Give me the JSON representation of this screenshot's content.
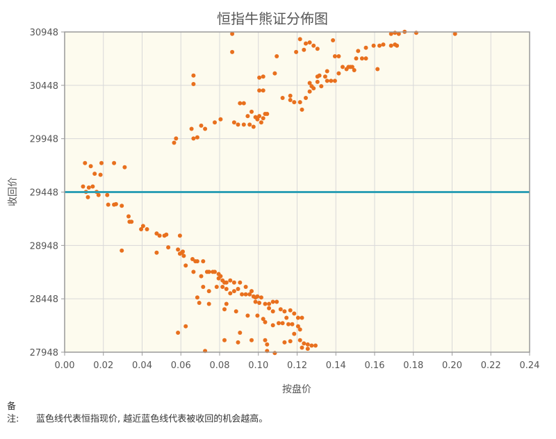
{
  "chart_data": {
    "type": "scatter",
    "title": "恒指牛熊证分佈图",
    "xlabel": "按盘价",
    "ylabel": "收回价",
    "xlim": [
      0,
      0.24
    ],
    "ylim": [
      27948,
      30948
    ],
    "x_ticks": [
      "0.00",
      "0.02",
      "0.04",
      "0.06",
      "0.08",
      "0.10",
      "0.12",
      "0.14",
      "0.16",
      "0.18",
      "0.20",
      "0.22",
      "0.24"
    ],
    "y_ticks": [
      "27948",
      "28448",
      "28948",
      "29448",
      "29948",
      "30448",
      "30948"
    ],
    "grid": true,
    "reference_line": {
      "y": 29448,
      "color": "#2fa0b5"
    },
    "point_color": "#e8701e",
    "plot_background": "#fdfbee",
    "points": [
      [
        0.0105,
        29720
      ],
      [
        0.0135,
        29690
      ],
      [
        0.0155,
        29620
      ],
      [
        0.019,
        29720
      ],
      [
        0.0185,
        29610
      ],
      [
        0.0255,
        29720
      ],
      [
        0.031,
        29680
      ],
      [
        0.0095,
        29500
      ],
      [
        0.0125,
        29490
      ],
      [
        0.0145,
        29500
      ],
      [
        0.011,
        29450
      ],
      [
        0.0165,
        29450
      ],
      [
        0.012,
        29400
      ],
      [
        0.0175,
        29420
      ],
      [
        0.022,
        29420
      ],
      [
        0.0225,
        29330
      ],
      [
        0.0255,
        29330
      ],
      [
        0.0265,
        29335
      ],
      [
        0.0295,
        29320
      ],
      [
        0.033,
        29220
      ],
      [
        0.0335,
        29170
      ],
      [
        0.0345,
        29170
      ],
      [
        0.0405,
        29130
      ],
      [
        0.0395,
        29100
      ],
      [
        0.0425,
        29100
      ],
      [
        0.0475,
        29060
      ],
      [
        0.049,
        29040
      ],
      [
        0.0515,
        29040
      ],
      [
        0.0525,
        29050
      ],
      [
        0.0595,
        29040
      ],
      [
        0.0295,
        28900
      ],
      [
        0.0475,
        28880
      ],
      [
        0.0535,
        28930
      ],
      [
        0.0585,
        28910
      ],
      [
        0.0595,
        28870
      ],
      [
        0.0605,
        28880
      ],
      [
        0.061,
        28890
      ],
      [
        0.0615,
        28850
      ],
      [
        0.066,
        28820
      ],
      [
        0.0675,
        28800
      ],
      [
        0.0685,
        28800
      ],
      [
        0.0715,
        28800
      ],
      [
        0.0625,
        28760
      ],
      [
        0.0735,
        28700
      ],
      [
        0.0745,
        28700
      ],
      [
        0.0765,
        28700
      ],
      [
        0.0775,
        28700
      ],
      [
        0.0795,
        28680
      ],
      [
        0.0805,
        28660
      ],
      [
        0.0665,
        28700
      ],
      [
        0.0705,
        28660
      ],
      [
        0.0795,
        28640
      ],
      [
        0.0815,
        28620
      ],
      [
        0.0825,
        28600
      ],
      [
        0.0835,
        28600
      ],
      [
        0.0855,
        28620
      ],
      [
        0.0875,
        28600
      ],
      [
        0.0905,
        28600
      ],
      [
        0.0785,
        28560
      ],
      [
        0.0815,
        28560
      ],
      [
        0.0835,
        28540
      ],
      [
        0.0855,
        28500
      ],
      [
        0.0875,
        28520
      ],
      [
        0.0895,
        28540
      ],
      [
        0.0915,
        28490
      ],
      [
        0.0935,
        28490
      ],
      [
        0.0955,
        28490
      ],
      [
        0.0975,
        28470
      ],
      [
        0.0995,
        28470
      ],
      [
        0.0935,
        28560
      ],
      [
        0.0965,
        28520
      ],
      [
        0.0985,
        28460
      ],
      [
        0.1015,
        28460
      ],
      [
        0.0985,
        28420
      ],
      [
        0.1005,
        28410
      ],
      [
        0.1035,
        28400
      ],
      [
        0.1055,
        28400
      ],
      [
        0.1075,
        28420
      ],
      [
        0.1095,
        28420
      ],
      [
        0.1055,
        28360
      ],
      [
        0.1075,
        28330
      ],
      [
        0.1115,
        28350
      ],
      [
        0.1135,
        28330
      ],
      [
        0.1165,
        28340
      ],
      [
        0.1185,
        28310
      ],
      [
        0.1205,
        28270
      ],
      [
        0.1225,
        28270
      ],
      [
        0.1145,
        28270
      ],
      [
        0.1105,
        28220
      ],
      [
        0.1125,
        28220
      ],
      [
        0.1155,
        28210
      ],
      [
        0.1175,
        28210
      ],
      [
        0.1205,
        28190
      ],
      [
        0.0715,
        28560
      ],
      [
        0.0745,
        28520
      ],
      [
        0.0685,
        28460
      ],
      [
        0.0745,
        28400
      ],
      [
        0.0835,
        28400
      ],
      [
        0.0825,
        28350
      ],
      [
        0.0885,
        28330
      ],
      [
        0.0945,
        28290
      ],
      [
        0.0995,
        28290
      ],
      [
        0.1025,
        28260
      ],
      [
        0.1035,
        28230
      ],
      [
        0.1075,
        28200
      ],
      [
        0.0695,
        28410
      ],
      [
        0.0585,
        28130
      ],
      [
        0.0625,
        28190
      ],
      [
        0.0905,
        28130
      ],
      [
        0.0965,
        28060
      ],
      [
        0.1035,
        28060
      ],
      [
        0.1045,
        28020
      ],
      [
        0.1135,
        28040
      ],
      [
        0.1165,
        28050
      ],
      [
        0.1215,
        28060
      ],
      [
        0.1235,
        28030
      ],
      [
        0.1255,
        28020
      ],
      [
        0.1275,
        28010
      ],
      [
        0.1295,
        28010
      ],
      [
        0.1225,
        27990
      ],
      [
        0.1255,
        27980
      ],
      [
        0.0825,
        28060
      ],
      [
        0.0895,
        28040
      ],
      [
        0.1045,
        27960
      ],
      [
        0.1085,
        27940
      ],
      [
        0.1185,
        28120
      ],
      [
        0.1215,
        28160
      ],
      [
        0.0725,
        27960
      ],
      [
        0.0565,
        29910
      ],
      [
        0.0575,
        29950
      ],
      [
        0.0655,
        30040
      ],
      [
        0.0665,
        29950
      ],
      [
        0.0685,
        29960
      ],
      [
        0.0705,
        30070
      ],
      [
        0.0725,
        30040
      ],
      [
        0.0665,
        30540
      ],
      [
        0.0665,
        30460
      ],
      [
        0.0775,
        30100
      ],
      [
        0.0805,
        30130
      ],
      [
        0.0875,
        30100
      ],
      [
        0.0895,
        30080
      ],
      [
        0.0925,
        30080
      ],
      [
        0.0955,
        30080
      ],
      [
        0.0905,
        30280
      ],
      [
        0.0925,
        30280
      ],
      [
        0.0985,
        30150
      ],
      [
        0.1005,
        30160
      ],
      [
        0.1035,
        30180
      ],
      [
        0.1045,
        30180
      ],
      [
        0.1015,
        30100
      ],
      [
        0.1025,
        30140
      ],
      [
        0.0995,
        30130
      ],
      [
        0.0945,
        30160
      ],
      [
        0.0975,
        30060
      ],
      [
        0.1005,
        30400
      ],
      [
        0.1025,
        30400
      ],
      [
        0.1005,
        30520
      ],
      [
        0.1025,
        30530
      ],
      [
        0.0965,
        30200
      ],
      [
        0.1085,
        30560
      ],
      [
        0.0865,
        30930
      ],
      [
        0.0865,
        30760
      ],
      [
        0.1125,
        30330
      ],
      [
        0.1165,
        30310
      ],
      [
        0.1165,
        30350
      ],
      [
        0.1185,
        30290
      ],
      [
        0.1215,
        30290
      ],
      [
        0.1225,
        30220
      ],
      [
        0.1245,
        30330
      ],
      [
        0.1265,
        30390
      ],
      [
        0.1275,
        30440
      ],
      [
        0.1285,
        30420
      ],
      [
        0.1325,
        30440
      ],
      [
        0.1265,
        30470
      ],
      [
        0.1305,
        30530
      ],
      [
        0.1345,
        30530
      ],
      [
        0.1305,
        30480
      ],
      [
        0.1315,
        30540
      ],
      [
        0.1355,
        30490
      ],
      [
        0.1375,
        30490
      ],
      [
        0.1395,
        30490
      ],
      [
        0.1355,
        30580
      ],
      [
        0.1415,
        30560
      ],
      [
        0.1455,
        30600
      ],
      [
        0.1475,
        30620
      ],
      [
        0.1495,
        30590
      ],
      [
        0.1435,
        30620
      ],
      [
        0.1465,
        30620
      ],
      [
        0.1485,
        30620
      ],
      [
        0.1395,
        30720
      ],
      [
        0.1415,
        30720
      ],
      [
        0.1505,
        30700
      ],
      [
        0.1535,
        30700
      ],
      [
        0.1555,
        30700
      ],
      [
        0.1515,
        30770
      ],
      [
        0.1555,
        30800
      ],
      [
        0.1595,
        30820
      ],
      [
        0.1625,
        30820
      ],
      [
        0.1645,
        30830
      ],
      [
        0.1685,
        30820
      ],
      [
        0.1705,
        30830
      ],
      [
        0.1715,
        30820
      ],
      [
        0.1685,
        30930
      ],
      [
        0.1705,
        30940
      ],
      [
        0.1755,
        30950
      ],
      [
        0.1815,
        30940
      ],
      [
        0.2015,
        30930
      ],
      [
        0.1725,
        30930
      ],
      [
        0.1615,
        30600
      ],
      [
        0.1235,
        30780
      ],
      [
        0.1195,
        30760
      ],
      [
        0.1285,
        30820
      ],
      [
        0.1245,
        30840
      ],
      [
        0.1095,
        30720
      ],
      [
        0.1215,
        30880
      ],
      [
        0.1265,
        30850
      ],
      [
        0.1305,
        30790
      ],
      [
        0.1385,
        30870
      ]
    ]
  },
  "note": {
    "label": "备注:",
    "text": "蓝色线代表恒指现价, 越近蓝色线代表被收回的机会越高。"
  }
}
